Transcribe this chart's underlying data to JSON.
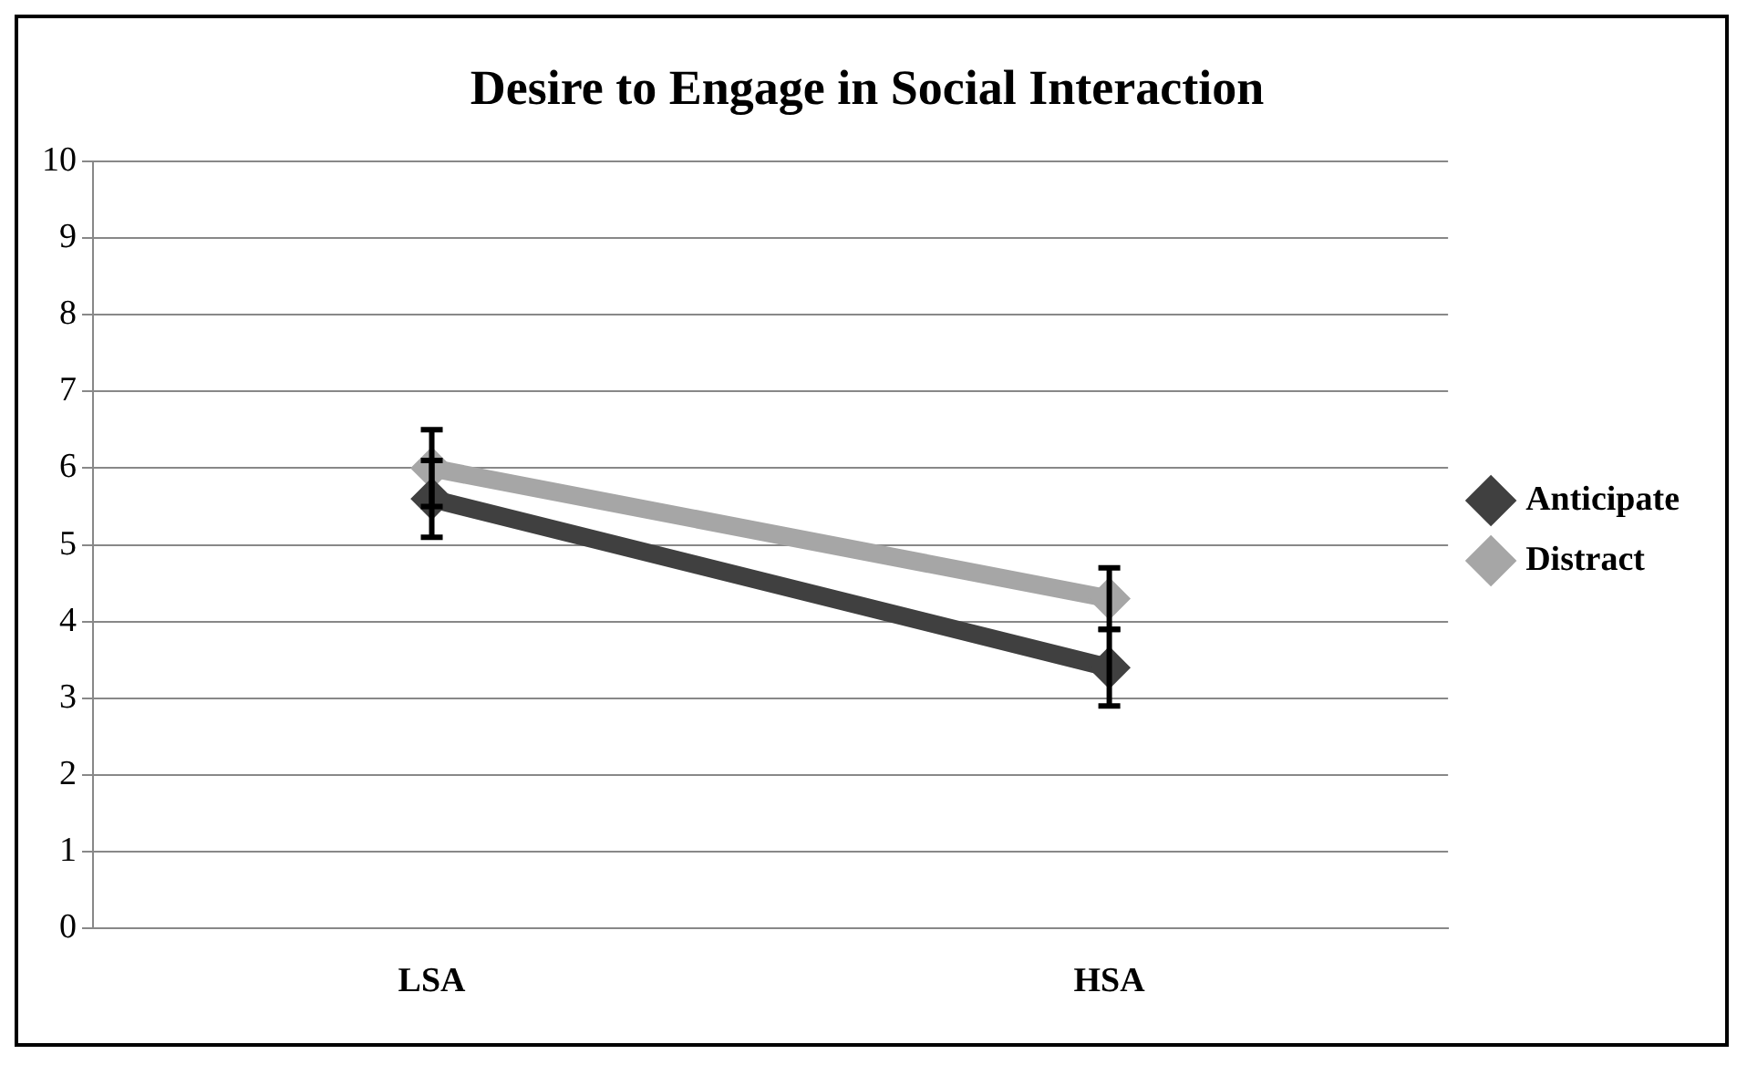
{
  "chart_data": {
    "type": "line",
    "title": "Desire to Engage in Social Interaction",
    "categories": [
      "LSA",
      "HSA"
    ],
    "series": [
      {
        "name": "Anticipate",
        "color": "#404040",
        "values": [
          5.6,
          3.4
        ],
        "errors": [
          0.5,
          0.5
        ]
      },
      {
        "name": "Distract",
        "color": "#a6a6a6",
        "values": [
          6.0,
          4.3
        ],
        "errors": [
          0.5,
          0.4
        ]
      }
    ],
    "ylim": [
      0,
      10
    ],
    "yticks": [
      0,
      1,
      2,
      3,
      4,
      5,
      6,
      7,
      8,
      9,
      10
    ],
    "grid": "y",
    "legend": "right",
    "marker": "diamond",
    "line_style": "solid"
  }
}
